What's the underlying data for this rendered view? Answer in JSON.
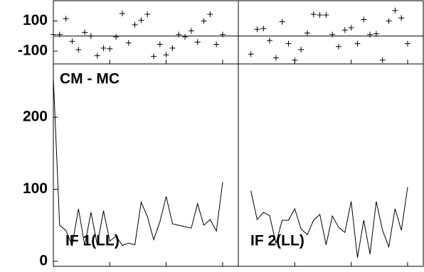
{
  "chart_data": {
    "type": "line",
    "annotation": "CM - MC",
    "xlim": [
      0,
      29.5
    ],
    "xticks": [
      9,
      18,
      27
    ],
    "ylim": [
      -7,
      274
    ],
    "yticks": [
      0,
      100,
      200
    ],
    "resid_ylim": [
      -185,
      235
    ],
    "resid_yticks": [
      -100,
      100
    ],
    "color": "#000000",
    "panels": [
      {
        "label": "IF 1(LL)",
        "x": [
          0,
          1,
          2,
          3,
          4,
          5,
          6,
          7,
          8,
          9,
          10,
          11,
          12,
          13,
          14,
          15,
          16,
          17,
          18,
          19,
          20,
          21,
          22,
          23,
          24,
          25,
          26,
          27
        ],
        "values": [
          255,
          50,
          43,
          22,
          73,
          22,
          68,
          23,
          70,
          28,
          35,
          22,
          25,
          23,
          82,
          62,
          30,
          55,
          90,
          52,
          50,
          48,
          46,
          80,
          50,
          58,
          42,
          110
        ],
        "residuals": [
          10,
          10,
          115,
          -35,
          -90,
          25,
          0,
          -130,
          -80,
          -85,
          -5,
          150,
          -45,
          75,
          105,
          145,
          -135,
          -55,
          -125,
          -80,
          10,
          -5,
          35,
          -40,
          100,
          145,
          -55,
          10
        ]
      },
      {
        "label": "IF 2(LL)",
        "x": [
          2,
          3,
          4,
          5,
          6,
          7,
          8,
          9,
          10,
          11,
          12,
          13,
          14,
          15,
          16,
          17,
          18,
          19,
          20,
          21,
          22,
          23,
          24,
          25,
          26,
          27
        ],
        "values": [
          98,
          58,
          68,
          63,
          25,
          57,
          57,
          73,
          45,
          37,
          57,
          65,
          23,
          63,
          47,
          40,
          83,
          5,
          57,
          10,
          83,
          43,
          20,
          73,
          43,
          103
        ],
        "residuals": [
          -120,
          45,
          50,
          -30,
          -145,
          95,
          -50,
          -160,
          -90,
          20,
          145,
          140,
          140,
          10,
          -70,
          40,
          55,
          -50,
          110,
          10,
          15,
          -160,
          100,
          170,
          120,
          -50
        ]
      }
    ]
  }
}
